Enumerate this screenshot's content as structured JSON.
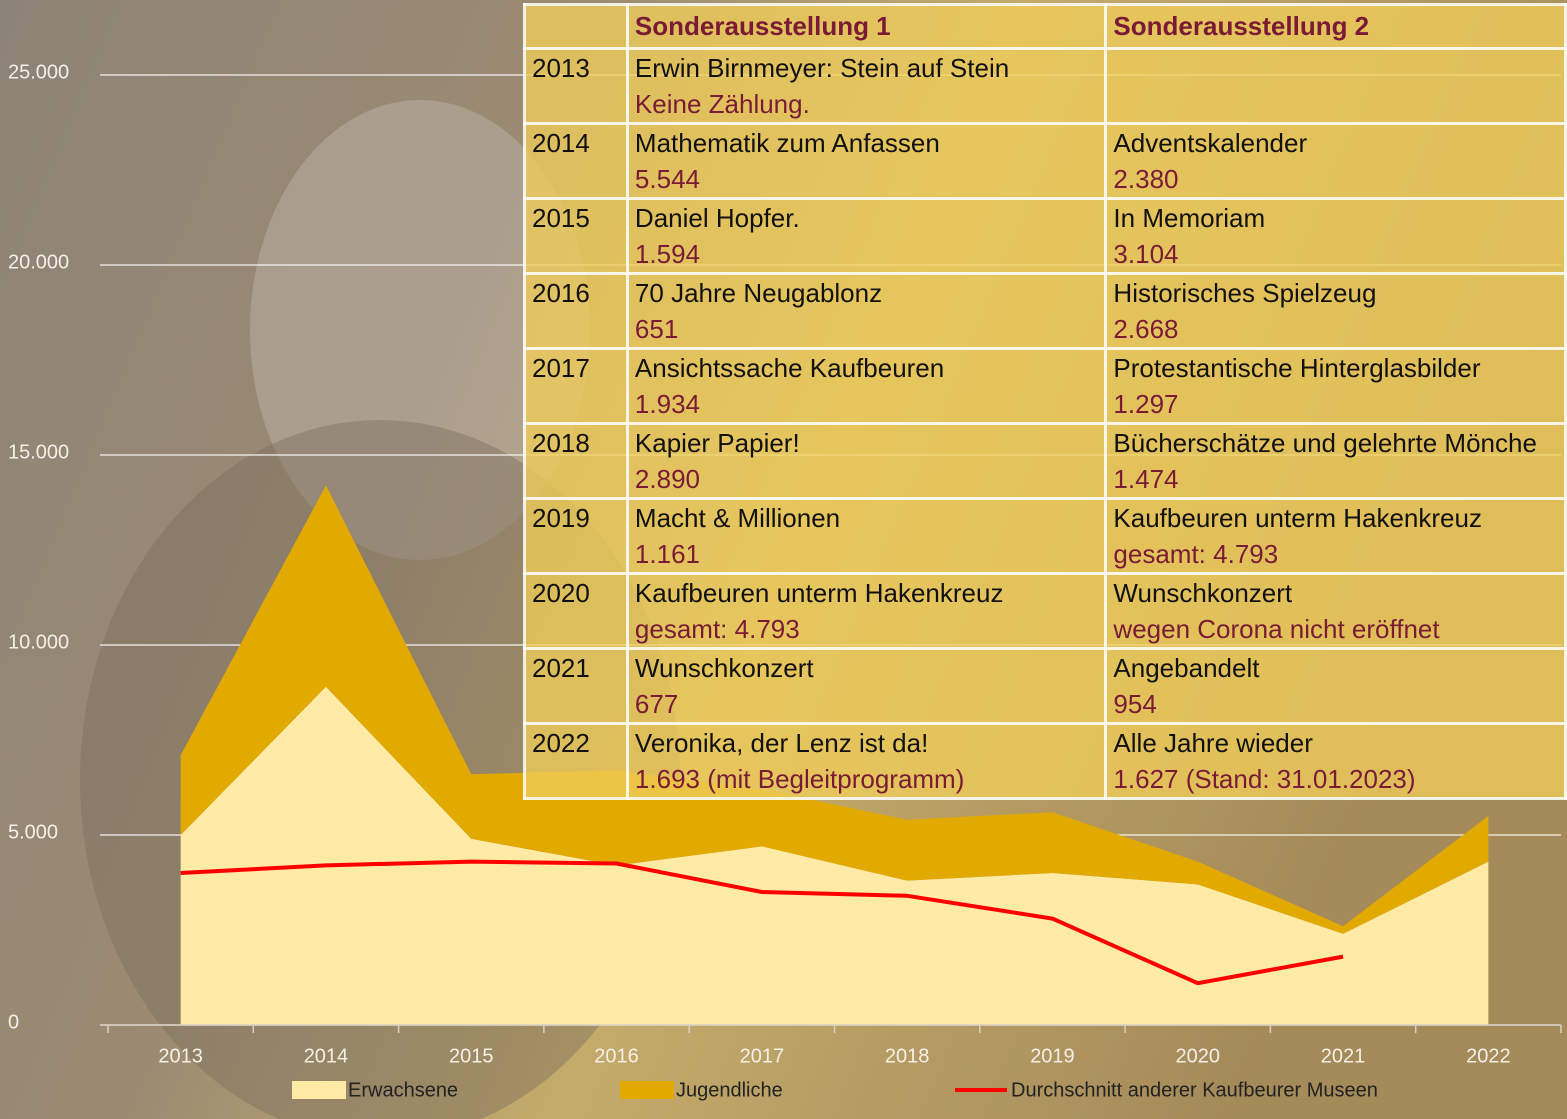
{
  "chart_data": {
    "type": "area",
    "categories": [
      "2013",
      "2014",
      "2015",
      "2016",
      "2017",
      "2018",
      "2019",
      "2020",
      "2021",
      "2022"
    ],
    "series": [
      {
        "name": "Erwachsene",
        "color": "#ffeaa6",
        "values": [
          5000,
          8900,
          4900,
          4200,
          4700,
          3800,
          4000,
          3700,
          2400,
          4300
        ]
      },
      {
        "name": "Jugendliche",
        "color": "#e2aa00",
        "values": [
          2100,
          5300,
          1700,
          2500,
          1500,
          1600,
          1600,
          600,
          200,
          1200
        ]
      },
      {
        "name": "Durchschnitt anderer Kaufbeurer Museen",
        "color": "#ff0000",
        "type": "line",
        "values": [
          4000,
          4200,
          4300,
          4250,
          3500,
          3400,
          2800,
          1100,
          1800,
          null
        ]
      }
    ],
    "ylim": [
      0,
      25000
    ],
    "yticks": [
      0,
      {
        "value": 5000,
        "label": "5.000"
      },
      {
        "value": 10000,
        "label": "10.000"
      },
      {
        "value": 15000,
        "label": "15.000"
      },
      {
        "value": 20000,
        "label": "20.000"
      },
      {
        "value": 25000,
        "label": "25.000"
      }
    ],
    "grid": true,
    "legend": "bottom"
  },
  "table": {
    "header": [
      "Sonderausstellung 1",
      "Sonderausstellung 2"
    ],
    "rows": [
      {
        "year": "2013",
        "exhibit1": {
          "title": "Erwin Birnmeyer: Stein auf Stein",
          "visitors": "Keine Zählung."
        }
      },
      {
        "year": "2014",
        "exhibit1": {
          "title": "Mathematik zum Anfassen",
          "visitors": "5.544"
        },
        "exhibit2": {
          "title": "Adventskalender",
          "visitors": "2.380"
        }
      },
      {
        "year": "2015",
        "exhibit1": {
          "title": "Daniel Hopfer.",
          "visitors": "1.594"
        },
        "exhibit2": {
          "title": "In Memoriam",
          "visitors": "3.104"
        }
      },
      {
        "year": "2016",
        "exhibit1": {
          "title": "70 Jahre Neugablonz",
          "visitors": "651"
        },
        "exhibit2": {
          "title": "Historisches Spielzeug",
          "visitors": "2.668"
        }
      },
      {
        "year": "2017",
        "exhibit1": {
          "title": "Ansichtssache Kaufbeuren",
          "visitors": "1.934"
        },
        "exhibit2": {
          "title": "Protestantische Hinterglasbilder",
          "visitors": "1.297"
        }
      },
      {
        "year": "2018",
        "exhibit1": {
          "title": "Kapier Papier!",
          "visitors": "2.890"
        },
        "exhibit2": {
          "title": "Bücherschätze und gelehrte Mönche",
          "visitors": "1.474"
        }
      },
      {
        "year": "2019",
        "exhibit1": {
          "title": "Macht & Millionen",
          "visitors": "1.161"
        },
        "exhibit2": {
          "title": "Kaufbeuren unterm Hakenkreuz",
          "visitors": "gesamt: 4.793"
        }
      },
      {
        "year": "2020",
        "exhibit1": {
          "title": "Kaufbeuren unterm Hakenkreuz",
          "visitors": "gesamt: 4.793"
        },
        "exhibit2": {
          "title": "Wunschkonzert",
          "visitors": "wegen Corona nicht eröffnet"
        }
      },
      {
        "year": "2021",
        "exhibit1": {
          "title": "Wunschkonzert",
          "visitors": "677"
        },
        "exhibit2": {
          "title": "Angebandelt",
          "visitors": "954"
        }
      },
      {
        "year": "2022",
        "exhibit1": {
          "title": "Veronika, der Lenz ist da!",
          "visitors": "1.693 (mit Begleitprogramm)"
        },
        "exhibit2": {
          "title": "Alle Jahre wieder",
          "visitors": "1.627 (Stand: 31.01.2023)"
        }
      }
    ]
  }
}
